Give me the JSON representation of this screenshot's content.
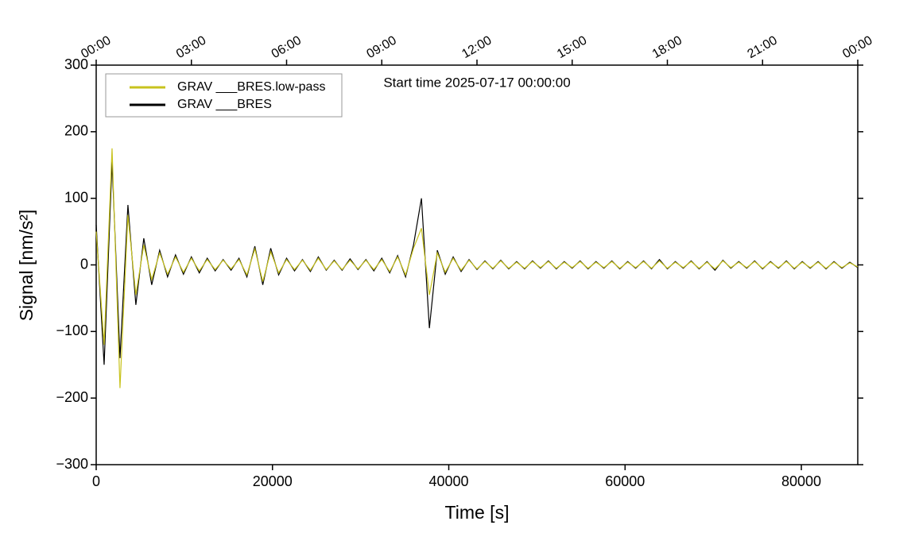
{
  "chart_data": {
    "type": "line",
    "annotation": "Start time 2025-07-17 00:00:00",
    "xlabel": "Time [s]",
    "ylabel": "Signal [nm/s²]",
    "xlim": [
      0,
      86400
    ],
    "ylim": [
      -300,
      300
    ],
    "xticks": [
      0,
      20000,
      40000,
      60000,
      80000
    ],
    "yticks": [
      {
        "value": -300,
        "label": "−300"
      },
      {
        "value": -200,
        "label": "−200"
      },
      {
        "value": -100,
        "label": "−100"
      },
      0,
      100,
      200,
      300
    ],
    "x2ticks": [
      {
        "value": 0,
        "label": "00:00"
      },
      {
        "value": 10800,
        "label": "03:00"
      },
      {
        "value": 21600,
        "label": "06:00"
      },
      {
        "value": 32400,
        "label": "09:00"
      },
      {
        "value": 43200,
        "label": "12:00"
      },
      {
        "value": 54000,
        "label": "15:00"
      },
      {
        "value": 64800,
        "label": "18:00"
      },
      {
        "value": 75600,
        "label": "21:00"
      },
      {
        "value": 86400,
        "label": "00:00"
      }
    ],
    "legend": "upper left",
    "x": [
      0,
      900,
      1800,
      2700,
      3600,
      4500,
      5400,
      6300,
      7200,
      8100,
      9000,
      9900,
      10800,
      11700,
      12600,
      13500,
      14400,
      15300,
      16200,
      17100,
      18000,
      18900,
      19800,
      20700,
      21600,
      22500,
      23400,
      24300,
      25200,
      26100,
      27000,
      27900,
      28800,
      29700,
      30600,
      31500,
      32400,
      33300,
      34200,
      35100,
      36000,
      36900,
      37800,
      38700,
      39600,
      40500,
      41400,
      42300,
      43200,
      44100,
      45000,
      45900,
      46800,
      47700,
      48600,
      49500,
      50400,
      51300,
      52200,
      53100,
      54000,
      54900,
      55800,
      56700,
      57600,
      58500,
      59400,
      60300,
      61200,
      62100,
      63000,
      63900,
      64800,
      65700,
      66600,
      67500,
      68400,
      69300,
      70200,
      71100,
      72000,
      72900,
      73800,
      74700,
      75600,
      76500,
      77400,
      78300,
      79200,
      80100,
      81000,
      81900,
      82800,
      83700,
      84600,
      85500,
      86400
    ],
    "series": [
      {
        "name": "GRAV ___BRES.low-pass",
        "color": "#c8c31e",
        "values": [
          50,
          -120,
          175,
          -185,
          75,
          -45,
          30,
          -22,
          18,
          -14,
          12,
          -11,
          10,
          -9,
          8,
          -7,
          7,
          -6,
          8,
          -15,
          24,
          -25,
          20,
          -12,
          8,
          -7,
          7,
          -8,
          10,
          -7,
          6,
          -7,
          7,
          -6,
          7,
          -7,
          8,
          -10,
          12,
          -15,
          25,
          55,
          -45,
          18,
          -11,
          10,
          -8,
          7,
          -6,
          5,
          -5,
          6,
          -5,
          4,
          -5,
          5,
          -4,
          5,
          -5,
          4,
          -4,
          5,
          -5,
          4,
          -4,
          5,
          -5,
          4,
          -4,
          5,
          -5,
          6,
          -5,
          4,
          -4,
          5,
          -5,
          4,
          -6,
          6,
          -4,
          4,
          -4,
          5,
          -5,
          4,
          -4,
          5,
          -5,
          4,
          -4,
          4,
          -5,
          4,
          -4,
          3,
          -3
        ]
      },
      {
        "name": "GRAV ___BRES",
        "color": "#000000",
        "values": [
          60,
          -150,
          155,
          -140,
          90,
          -60,
          40,
          -30,
          22,
          -18,
          15,
          -14,
          12,
          -12,
          10,
          -9,
          8,
          -8,
          10,
          -18,
          28,
          -30,
          25,
          -15,
          10,
          -9,
          8,
          -10,
          12,
          -8,
          7,
          -8,
          9,
          -7,
          8,
          -9,
          10,
          -12,
          14,
          -18,
          30,
          100,
          -95,
          22,
          -14,
          12,
          -10,
          8,
          -7,
          6,
          -6,
          7,
          -6,
          5,
          -6,
          6,
          -5,
          6,
          -6,
          5,
          -5,
          6,
          -6,
          5,
          -5,
          6,
          -6,
          5,
          -5,
          6,
          -6,
          8,
          -6,
          5,
          -5,
          6,
          -6,
          5,
          -8,
          7,
          -5,
          5,
          -5,
          6,
          -6,
          5,
          -5,
          6,
          -6,
          5,
          -5,
          5,
          -6,
          5,
          -5,
          4,
          -4
        ]
      }
    ]
  }
}
